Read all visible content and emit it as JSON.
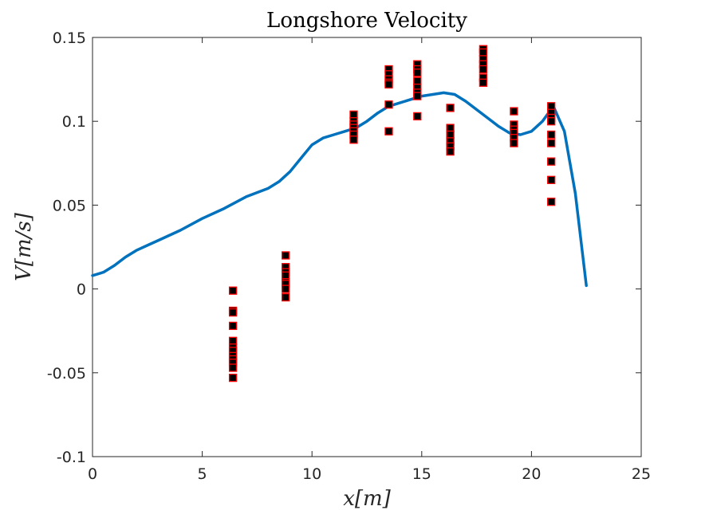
{
  "chart_data": {
    "type": "scatter",
    "title": "Longshore Velocity",
    "xlabel": "x[m]",
    "ylabel": "V[m/s]",
    "xlim": [
      0,
      25
    ],
    "ylim": [
      -0.1,
      0.15
    ],
    "xticks": [
      0,
      5,
      10,
      15,
      20,
      25
    ],
    "xtick_labels": [
      "0",
      "5",
      "10",
      "15",
      "20",
      "25"
    ],
    "yticks": [
      -0.1,
      -0.05,
      0,
      0.05,
      0.1,
      0.15
    ],
    "ytick_labels": [
      "-0.1",
      "-0.05",
      "0",
      "0.05",
      "0.1",
      "0.15"
    ],
    "grid": false,
    "line_color": "#0072BD",
    "marker_face_color": "#000000",
    "marker_edge_color": "#FF0000",
    "series": [
      {
        "type": "line",
        "x": [
          0,
          0.5,
          1,
          1.5,
          2,
          2.5,
          3,
          4,
          5,
          6,
          7,
          8,
          8.5,
          9,
          9.5,
          10,
          10.5,
          11,
          11.5,
          12,
          12.5,
          13,
          13.5,
          14,
          14.5,
          15,
          15.5,
          16,
          16.5,
          17,
          17.5,
          18,
          18.5,
          19,
          19.5,
          20,
          20.5,
          21,
          21.5,
          22,
          22.5
        ],
        "y": [
          0.008,
          0.01,
          0.014,
          0.019,
          0.023,
          0.026,
          0.029,
          0.035,
          0.042,
          0.048,
          0.055,
          0.06,
          0.064,
          0.07,
          0.078,
          0.086,
          0.09,
          0.092,
          0.094,
          0.096,
          0.1,
          0.105,
          0.109,
          0.111,
          0.113,
          0.115,
          0.116,
          0.117,
          0.116,
          0.112,
          0.107,
          0.102,
          0.097,
          0.093,
          0.092,
          0.094,
          0.1,
          0.109,
          0.094,
          0.057,
          0.002
        ]
      },
      {
        "type": "scatter",
        "x": [
          6.4,
          6.4,
          6.4,
          6.4,
          6.4,
          6.4,
          6.4,
          6.4,
          6.4,
          6.4,
          6.4,
          6.4,
          8.8,
          8.8,
          8.8,
          8.8,
          8.8,
          8.8,
          8.8,
          8.8,
          11.9,
          11.9,
          11.9,
          11.9,
          11.9,
          11.9,
          11.9,
          13.5,
          13.5,
          13.5,
          13.5,
          13.5,
          13.5,
          13.5,
          14.8,
          14.8,
          14.8,
          14.8,
          14.8,
          14.8,
          14.8,
          14.8,
          16.3,
          16.3,
          16.3,
          16.3,
          16.3,
          16.3,
          17.8,
          17.8,
          17.8,
          17.8,
          17.8,
          17.8,
          17.8,
          19.2,
          19.2,
          19.2,
          19.2,
          19.2,
          19.2,
          20.9,
          20.9,
          20.9,
          20.9,
          20.9,
          20.9,
          20.9,
          20.9,
          20.9
        ],
        "y": [
          -0.001,
          -0.013,
          -0.014,
          -0.022,
          -0.031,
          -0.035,
          -0.037,
          -0.04,
          -0.042,
          -0.044,
          -0.047,
          -0.053,
          0.02,
          0.013,
          0.01,
          0.008,
          0.004,
          0.003,
          0.0,
          -0.005,
          0.104,
          0.1,
          0.098,
          0.096,
          0.094,
          0.092,
          0.089,
          0.131,
          0.128,
          0.125,
          0.123,
          0.122,
          0.11,
          0.094,
          0.134,
          0.131,
          0.129,
          0.124,
          0.12,
          0.117,
          0.115,
          0.103,
          0.108,
          0.096,
          0.092,
          0.088,
          0.085,
          0.082,
          0.143,
          0.141,
          0.137,
          0.134,
          0.131,
          0.126,
          0.123,
          0.106,
          0.098,
          0.095,
          0.093,
          0.09,
          0.087,
          0.109,
          0.105,
          0.102,
          0.1,
          0.092,
          0.087,
          0.076,
          0.065,
          0.052
        ]
      }
    ]
  }
}
